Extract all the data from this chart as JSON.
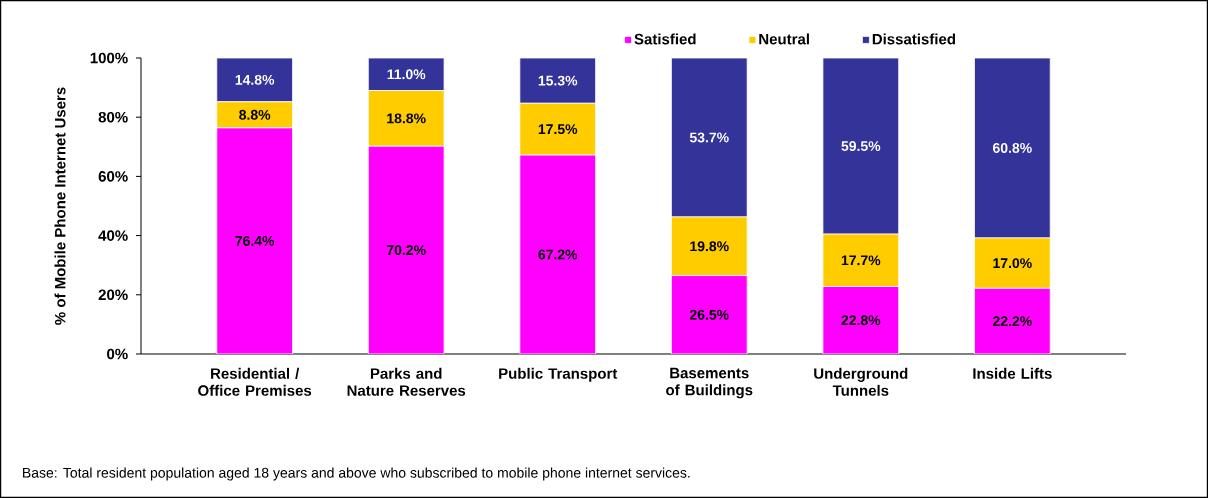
{
  "chart_data": {
    "type": "bar",
    "stacked": true,
    "categories": [
      "Residential / Office Premises",
      "Parks and Nature Reserves",
      "Public Transport",
      "Basements of Buildings",
      "Underground Tunnels",
      "Inside Lifts"
    ],
    "series": [
      {
        "name": "Satisfied",
        "color": "#ff00ff",
        "values": [
          76.4,
          70.2,
          67.2,
          26.5,
          22.8,
          22.2
        ],
        "value_labels": [
          "76.4%",
          "70.2%",
          "67.2%",
          "26.5%",
          "22.8%",
          "22.2%"
        ]
      },
      {
        "name": "Neutral",
        "color": "#ffcc00",
        "values": [
          8.8,
          18.8,
          17.5,
          19.8,
          17.7,
          17.0
        ],
        "value_labels": [
          "8.8%",
          "18.8%",
          "17.5%",
          "19.8%",
          "17.7%",
          "17.0%"
        ]
      },
      {
        "name": "Dissatisfied",
        "color": "#333399",
        "values": [
          14.8,
          11.0,
          15.3,
          53.7,
          59.5,
          60.8
        ],
        "value_labels": [
          "14.8%",
          "11.0%",
          "15.3%",
          "53.7%",
          "59.5%",
          "60.8%"
        ]
      }
    ],
    "ylabel": "% of Mobile Phone Internet Users",
    "ylim": [
      0,
      100
    ],
    "yticks": [
      {
        "value": 0,
        "label": "0%"
      },
      {
        "value": 20,
        "label": "20%"
      },
      {
        "value": 40,
        "label": "40%"
      },
      {
        "value": 60,
        "label": "60%"
      },
      {
        "value": 80,
        "label": "80%"
      },
      {
        "value": 100,
        "label": "100%"
      }
    ],
    "legend": "top",
    "annotations": [
      "Base: Total resident population aged 18 years and above who subscribed to mobile phone internet services."
    ]
  }
}
